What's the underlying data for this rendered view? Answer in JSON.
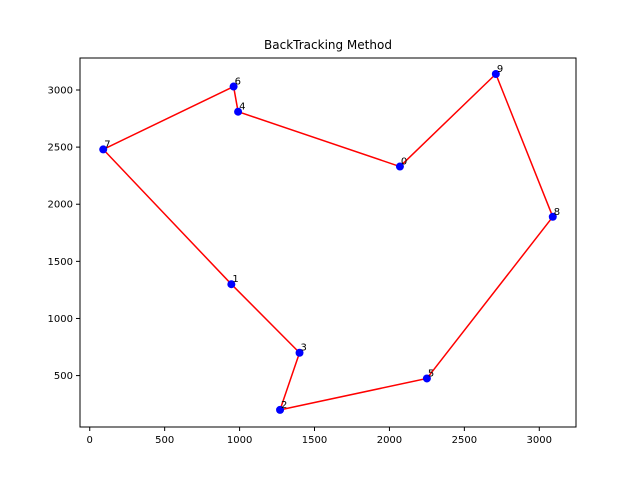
{
  "chart_data": {
    "type": "line",
    "title": "BackTracking Method",
    "xlabel": "",
    "ylabel": "",
    "xlim": [
      -65,
      3245
    ],
    "ylim": [
      50,
      3280
    ],
    "x_ticks": [
      0,
      500,
      1000,
      1500,
      2000,
      2500,
      3000
    ],
    "y_ticks": [
      500,
      1000,
      1500,
      2000,
      2500,
      3000
    ],
    "grid": false,
    "colors": {
      "route": "#ff0000",
      "points": "#0000ff"
    },
    "points": [
      {
        "label": "0",
        "x": 2070,
        "y": 2330
      },
      {
        "label": "1",
        "x": 945,
        "y": 1300
      },
      {
        "label": "2",
        "x": 1270,
        "y": 200
      },
      {
        "label": "3",
        "x": 1400,
        "y": 700
      },
      {
        "label": "4",
        "x": 990,
        "y": 2810
      },
      {
        "label": "5",
        "x": 2250,
        "y": 475
      },
      {
        "label": "6",
        "x": 960,
        "y": 3030
      },
      {
        "label": "7",
        "x": 90,
        "y": 2480
      },
      {
        "label": "8",
        "x": 3090,
        "y": 1890
      },
      {
        "label": "9",
        "x": 2710,
        "y": 3140
      }
    ],
    "route": [
      "0",
      "4",
      "6",
      "7",
      "1",
      "3",
      "2",
      "5",
      "8",
      "9",
      "0"
    ]
  }
}
